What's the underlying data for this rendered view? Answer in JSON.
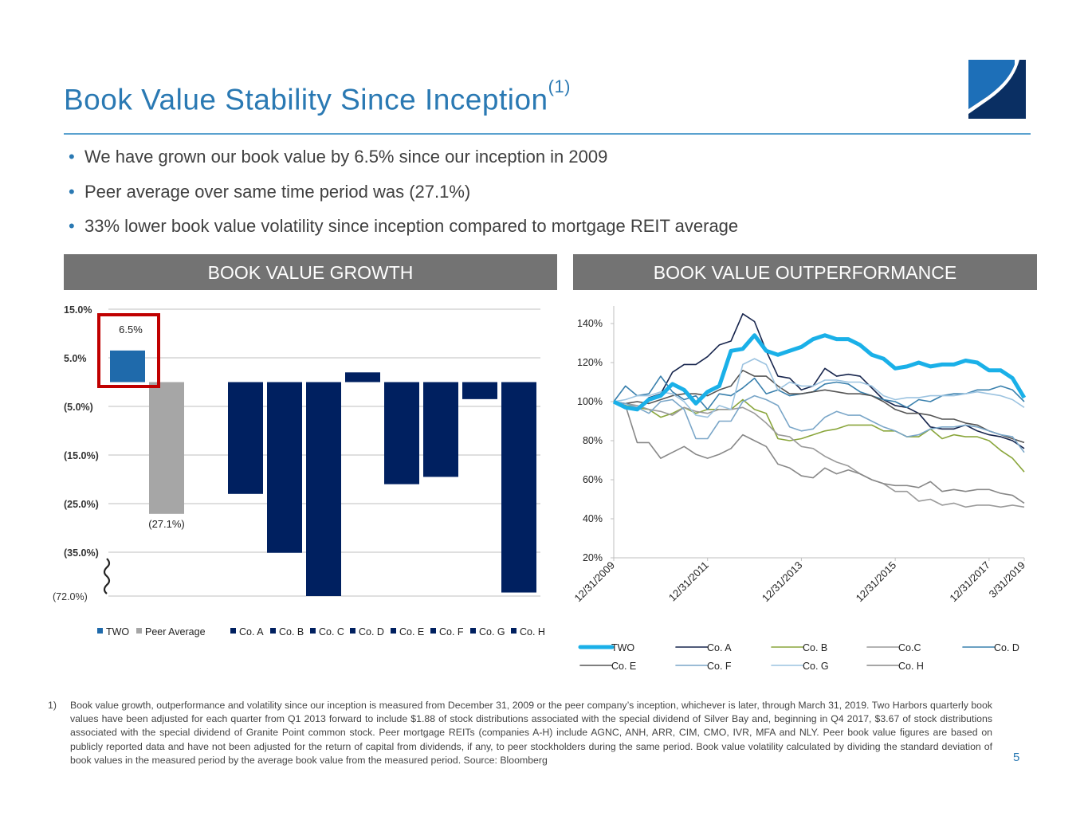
{
  "title": {
    "main": "Book Value Stability Since Inception",
    "sup": "(1)"
  },
  "bullets": [
    "We have grown our book value by 6.5% since our inception in 2009",
    "Peer average over same time period was (27.1%)",
    "33% lower book value volatility since inception compared to mortgage REIT average"
  ],
  "panels": {
    "left_header": "BOOK VALUE GROWTH",
    "right_header": "BOOK VALUE OUTPERFORMANCE"
  },
  "colors": {
    "title": "#2a79b3",
    "header_bg": "#737373",
    "two_bar": "#1f6aab",
    "peer_bar": "#a6a6a6",
    "company_bar": "#002060",
    "highlight_box": "#c00000"
  },
  "icons": [
    "two-harbors-logo-icon",
    "axis-break-icon"
  ],
  "chart_data": [
    {
      "type": "bar",
      "title": "BOOK VALUE GROWTH",
      "categories": [
        "TWO",
        "Peer Average",
        "Co. A",
        "Co. B",
        "Co. C",
        "Co. D",
        "Co. E",
        "Co. F",
        "Co. G",
        "Co. H"
      ],
      "values": [
        6.5,
        -27.1,
        -23.0,
        -35.5,
        -72.0,
        2.0,
        -21.0,
        -19.5,
        -3.5,
        -69.0
      ],
      "y_ticks": [
        "15.0%",
        "5.0%",
        "(5.0%)",
        "(15.0%)",
        "(25.0%)",
        "(35.0%)",
        "(72.0%)"
      ],
      "ylim": [
        -72,
        15
      ],
      "axis_break": "between (35.0%) and (72.0%)",
      "data_labels": {
        "TWO": "6.5%",
        "Peer Average": "(27.1%)"
      },
      "legend": [
        "TWO",
        "Peer Average",
        "Co. A",
        "Co. B",
        "Co. C",
        "Co. D",
        "Co. E",
        "Co. F",
        "Co. G",
        "Co. H"
      ],
      "legend_position": "bottom",
      "grid": true
    },
    {
      "type": "line",
      "title": "BOOK VALUE OUTPERFORMANCE",
      "x_ticks": [
        "12/31/2009",
        "12/31/2011",
        "12/31/2013",
        "12/31/2015",
        "12/31/2017",
        "3/31/2019"
      ],
      "y_ticks": [
        "20%",
        "40%",
        "60%",
        "80%",
        "100%",
        "120%",
        "140%"
      ],
      "ylim": [
        20,
        148
      ],
      "legend_position": "bottom",
      "grid": false,
      "series": [
        {
          "name": "TWO",
          "color": "#1ab0e8",
          "width": 5,
          "values": [
            100,
            97,
            96,
            101,
            103,
            109,
            106,
            99,
            105,
            108,
            126,
            127,
            134,
            126,
            124,
            126,
            128,
            132,
            134,
            132,
            132,
            129,
            124,
            122,
            117,
            118,
            120,
            118,
            119,
            119,
            121,
            120,
            116,
            116,
            112,
            102
          ]
        },
        {
          "name": "Co. A",
          "color": "#17254d",
          "width": 1.6,
          "values": [
            100,
            98,
            96,
            102,
            104,
            115,
            119,
            119,
            123,
            129,
            131,
            145,
            141,
            126,
            113,
            112,
            106,
            108,
            117,
            113,
            114,
            113,
            107,
            101,
            98,
            97,
            94,
            87,
            86,
            86,
            88,
            85,
            83,
            82,
            80,
            76
          ]
        },
        {
          "name": "Co. B",
          "color": "#8aa63c",
          "width": 1.6,
          "values": [
            100,
            98,
            97,
            96,
            92,
            94,
            97,
            94,
            96,
            96,
            96,
            101,
            96,
            94,
            81,
            80,
            81,
            83,
            85,
            86,
            88,
            88,
            88,
            85,
            85,
            82,
            82,
            86,
            81,
            83,
            82,
            82,
            80,
            75,
            71,
            64
          ]
        },
        {
          "name": "Co.C",
          "color": "#9a9a9a",
          "width": 1.6,
          "values": [
            100,
            99,
            98,
            96,
            95,
            93,
            97,
            95,
            94,
            96,
            96,
            97,
            94,
            89,
            83,
            82,
            77,
            76,
            72,
            69,
            67,
            63,
            60,
            58,
            54,
            54,
            49,
            50,
            47,
            48,
            46,
            47,
            47,
            46,
            47,
            46
          ]
        },
        {
          "name": "Co. D",
          "color": "#3a80ad",
          "width": 1.6,
          "values": [
            100,
            108,
            103,
            104,
            113,
            105,
            101,
            103,
            96,
            104,
            103,
            107,
            112,
            104,
            106,
            103,
            104,
            105,
            109,
            110,
            109,
            105,
            103,
            101,
            100,
            97,
            101,
            100,
            103,
            104,
            104,
            106,
            106,
            108,
            106,
            100
          ]
        },
        {
          "name": "Co. E",
          "color": "#555555",
          "width": 1.6,
          "values": [
            100,
            99,
            100,
            99,
            101,
            103,
            104,
            104,
            103,
            106,
            108,
            116,
            113,
            113,
            108,
            104,
            104,
            105,
            106,
            105,
            104,
            104,
            103,
            100,
            96,
            94,
            94,
            93,
            91,
            91,
            89,
            88,
            85,
            83,
            81,
            79
          ]
        },
        {
          "name": "Co. F",
          "color": "#7aa6c8",
          "width": 1.6,
          "values": [
            100,
            99,
            97,
            94,
            100,
            101,
            96,
            81,
            81,
            90,
            90,
            100,
            103,
            101,
            98,
            87,
            85,
            86,
            92,
            95,
            93,
            93,
            90,
            87,
            85,
            82,
            83,
            86,
            87,
            87,
            88,
            87,
            85,
            83,
            82,
            74
          ]
        },
        {
          "name": "Co. G",
          "color": "#9cc3e0",
          "width": 1.6,
          "values": [
            100,
            101,
            103,
            103,
            105,
            104,
            100,
            93,
            92,
            98,
            96,
            119,
            122,
            119,
            106,
            110,
            108,
            108,
            111,
            111,
            110,
            110,
            108,
            103,
            101,
            102,
            102,
            103,
            103,
            103,
            104,
            105,
            104,
            103,
            101,
            97
          ]
        },
        {
          "name": "Co. H",
          "color": "#888888",
          "width": 1.6,
          "values": [
            100,
            98,
            79,
            79,
            71,
            74,
            77,
            73,
            71,
            73,
            76,
            83,
            80,
            77,
            68,
            66,
            62,
            61,
            66,
            63,
            65,
            63,
            60,
            58,
            57,
            57,
            56,
            59,
            54,
            55,
            54,
            55,
            55,
            53,
            52,
            48
          ]
        }
      ]
    }
  ],
  "footnote": {
    "num": "1)",
    "text": "Book value growth, outperformance and volatility since our inception is measured from December 31, 2009 or the peer company’s inception, whichever is later, through March 31, 2019. Two Harbors quarterly book values have been adjusted for each quarter from Q1 2013 forward to include $1.88 of stock distributions associated with the special dividend of Silver Bay and, beginning in Q4 2017, $3.67 of stock distributions associated with the special dividend of Granite Point common stock. Peer mortgage REITs (companies A-H) include AGNC, ANH, ARR, CIM, CMO, IVR, MFA and NLY. Peer book value figures are based on publicly reported data and have not been adjusted for the return of capital from dividends, if any, to peer stockholders during the same period. Book value volatility calculated by dividing the standard deviation of book values in the measured period by the average book value from the measured period. Source: Bloomberg"
  },
  "page_number": "5"
}
